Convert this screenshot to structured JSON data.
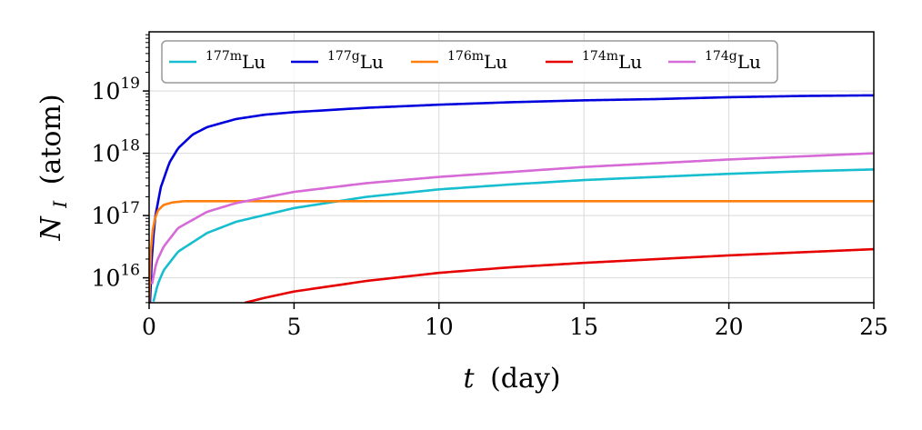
{
  "chart_data": {
    "type": "line",
    "title": "",
    "xlabel": {
      "var": "t",
      "unit": "(day)"
    },
    "ylabel": {
      "var": "N",
      "sub": "I",
      "unit": "(atom)"
    },
    "xlim": [
      0,
      25
    ],
    "ylim_log10": [
      15.6,
      19.95
    ],
    "yscale": "log",
    "grid": true,
    "legend_position": "top-left",
    "x_ticks": [
      0,
      5,
      10,
      15,
      20,
      25
    ],
    "y_ticks": [
      {
        "base": "10",
        "exp": "16",
        "log10": 16
      },
      {
        "base": "10",
        "exp": "17",
        "log10": 17
      },
      {
        "base": "10",
        "exp": "18",
        "log10": 18
      },
      {
        "base": "10",
        "exp": "19",
        "log10": 19
      }
    ],
    "series": [
      {
        "name": "177mLu",
        "mass": "177",
        "state": "m",
        "element": "Lu",
        "color": "#17becf",
        "x": [
          0.15,
          0.3,
          0.5,
          1,
          2,
          3,
          5,
          7.5,
          10,
          12.5,
          15,
          17.5,
          20,
          22.5,
          25
        ],
        "log10": [
          15.62,
          15.9,
          16.12,
          16.42,
          16.72,
          16.9,
          17.12,
          17.3,
          17.42,
          17.5,
          17.57,
          17.62,
          17.67,
          17.71,
          17.74
        ]
      },
      {
        "name": "177gLu",
        "mass": "177",
        "state": "g",
        "element": "Lu",
        "color": "#0000dd",
        "x": [
          0.03,
          0.1,
          0.2,
          0.4,
          0.7,
          1,
          1.5,
          2,
          3,
          4,
          5,
          7.5,
          10,
          12.5,
          15,
          17.5,
          20,
          22.5,
          25
        ],
        "log10": [
          15.6,
          16.4,
          16.95,
          17.45,
          17.85,
          18.08,
          18.3,
          18.42,
          18.55,
          18.62,
          18.66,
          18.73,
          18.78,
          18.82,
          18.85,
          18.87,
          18.9,
          18.92,
          18.93
        ]
      },
      {
        "name": "176mLu",
        "mass": "176",
        "state": "m",
        "element": "Lu",
        "color": "#ff7f0e",
        "x": [
          0,
          0.05,
          0.1,
          0.2,
          0.3,
          0.5,
          0.8,
          1.2,
          2,
          5,
          10,
          15,
          20,
          25
        ],
        "log10": [
          15.6,
          16.35,
          16.7,
          16.95,
          17.08,
          17.17,
          17.21,
          17.23,
          17.23,
          17.23,
          17.23,
          17.23,
          17.23,
          17.23
        ]
      },
      {
        "name": "174mLu",
        "mass": "174",
        "state": "m",
        "element": "Lu",
        "color": "#e60000",
        "x": [
          3.3,
          4,
          5,
          7.5,
          10,
          12.5,
          15,
          17.5,
          20,
          22.5,
          25
        ],
        "log10": [
          15.6,
          15.68,
          15.78,
          15.95,
          16.08,
          16.17,
          16.24,
          16.3,
          16.36,
          16.41,
          16.46
        ]
      },
      {
        "name": "174gLu",
        "mass": "174",
        "state": "g",
        "element": "Lu",
        "color": "#d66ad6",
        "x": [
          0.1,
          0.25,
          0.5,
          1,
          2,
          3,
          5,
          7.5,
          10,
          12.5,
          15,
          17.5,
          20,
          22.5,
          25
        ],
        "log10": [
          15.9,
          16.25,
          16.5,
          16.8,
          17.06,
          17.2,
          17.38,
          17.52,
          17.62,
          17.7,
          17.78,
          17.84,
          17.9,
          17.95,
          18
        ]
      }
    ]
  }
}
